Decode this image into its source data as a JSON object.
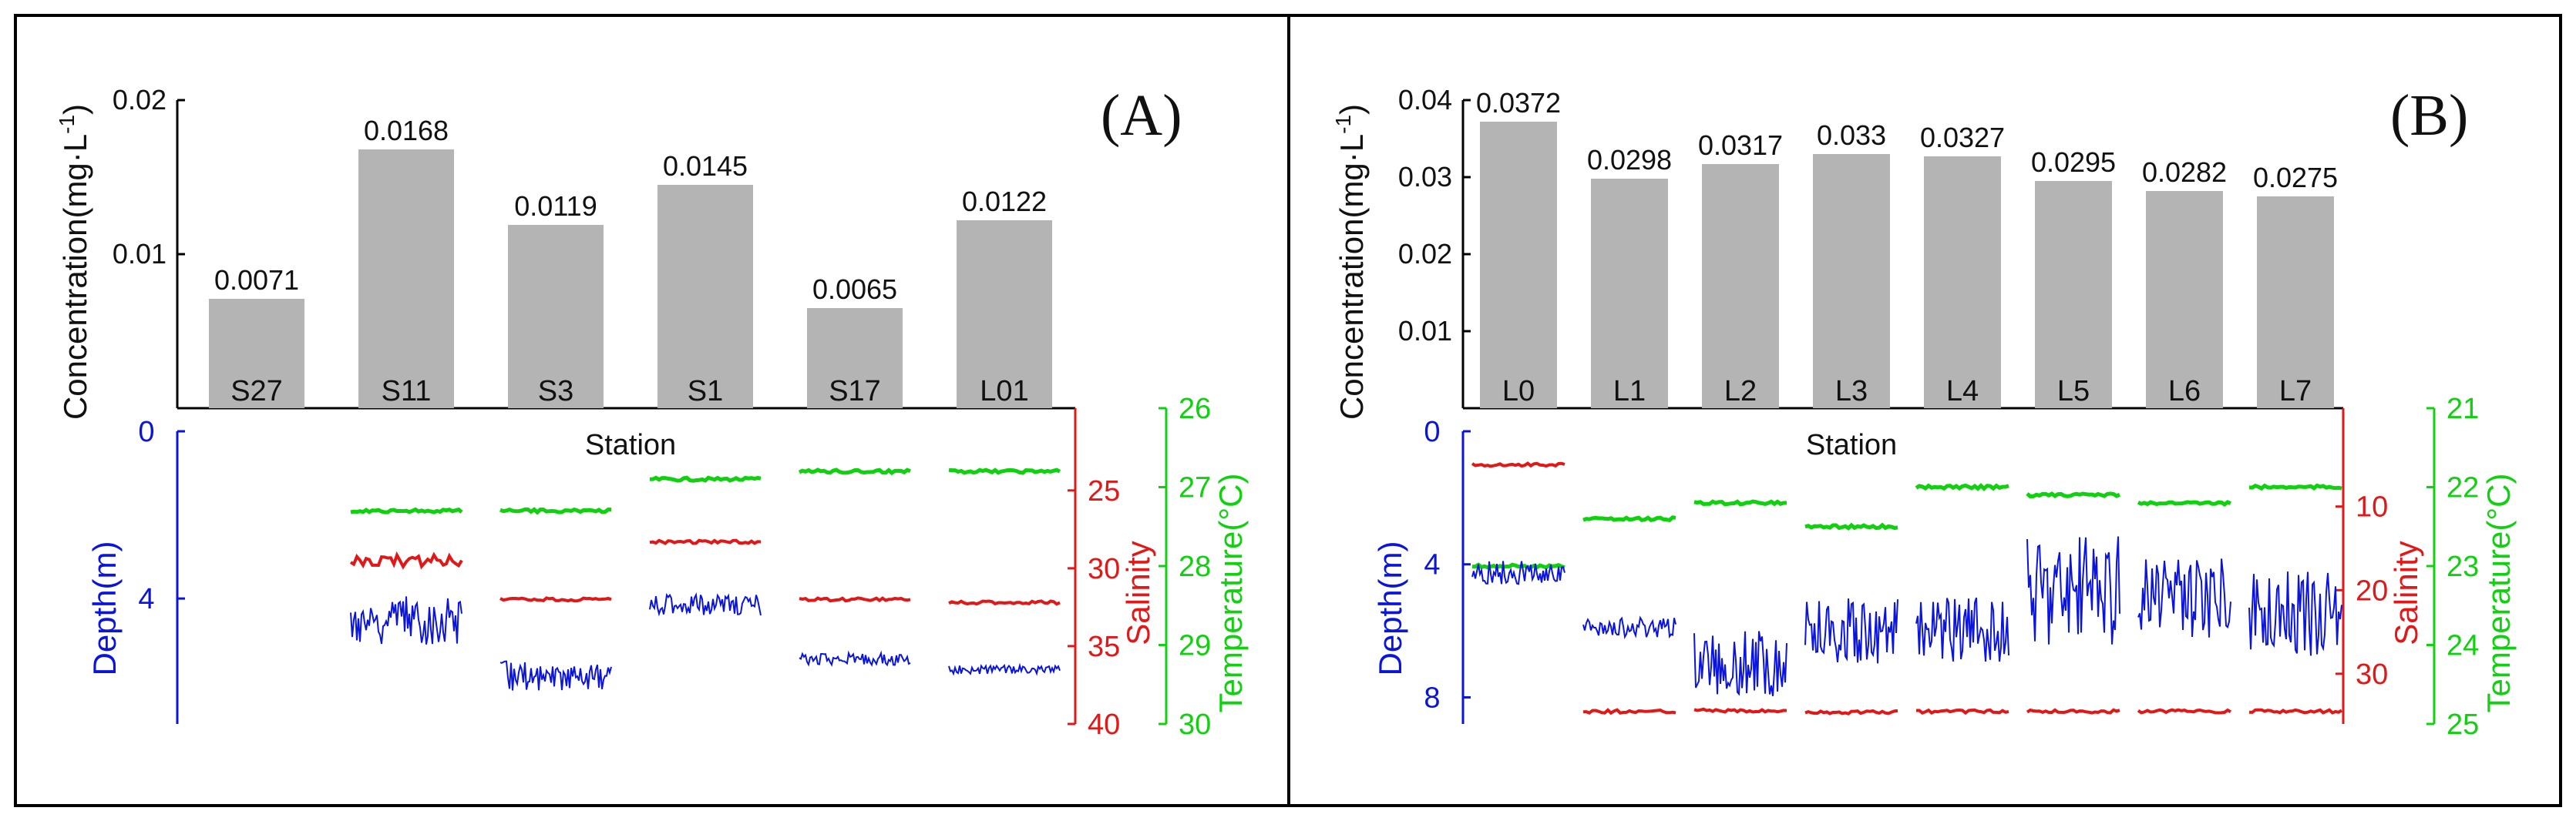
{
  "chart_data": [
    {
      "type": "bar",
      "panel": "(A)",
      "categories": [
        "S27",
        "S11",
        "S3",
        "S1",
        "S17",
        "L01"
      ],
      "values": [
        0.0071,
        0.0168,
        0.0119,
        0.0145,
        0.0065,
        0.0122
      ],
      "value_labels": [
        "0.0071",
        "0.0168",
        "0.0119",
        "0.0145",
        "0.0065",
        "0.0122"
      ],
      "xlabel": "Station",
      "ylabel": "Concentration(mg·L-1)",
      "ylim": [
        0,
        0.02
      ],
      "yticks": [
        "0.01",
        "0.02"
      ],
      "yticks_values": [
        0.01,
        0.02
      ],
      "profiles": {
        "depth_axis": {
          "label": "Depth(m)",
          "range": [
            0,
            7
          ],
          "ticks": [
            0,
            4
          ],
          "tick_labels": [
            "0",
            "4"
          ]
        },
        "salinity_axis": {
          "label": "Salinity",
          "range": [
            21.2,
            40
          ],
          "ticks": [
            25,
            30,
            35,
            40
          ],
          "tick_labels": [
            "25",
            "30",
            "35",
            "40"
          ]
        },
        "temperature_axis": {
          "label": "Temperature(°C)",
          "range": [
            26,
            30
          ],
          "ticks": [
            26,
            27,
            28,
            29,
            30
          ],
          "tick_labels": [
            "26",
            "27",
            "28",
            "29",
            "30"
          ]
        },
        "stations": [
          {
            "station": "S27"
          },
          {
            "station": "S11",
            "temperature": 27.3,
            "salinity": 29.5,
            "depth": [
              3.9,
              5.1
            ]
          },
          {
            "station": "S3",
            "temperature": 27.3,
            "salinity": 32.0,
            "depth": [
              5.5,
              6.2
            ]
          },
          {
            "station": "S1",
            "temperature": 26.9,
            "salinity": 28.3,
            "depth": [
              3.9,
              4.4
            ]
          },
          {
            "station": "S17",
            "temperature": 26.8,
            "salinity": 32.0,
            "depth": [
              5.3,
              5.6
            ]
          },
          {
            "station": "L01",
            "temperature": 26.8,
            "salinity": 32.2,
            "depth": [
              5.6,
              5.8
            ]
          }
        ]
      }
    },
    {
      "type": "bar",
      "panel": "(B)",
      "categories": [
        "L0",
        "L1",
        "L2",
        "L3",
        "L4",
        "L5",
        "L6",
        "L7"
      ],
      "values": [
        0.0372,
        0.0298,
        0.0317,
        0.033,
        0.0327,
        0.0295,
        0.0282,
        0.0275
      ],
      "value_labels": [
        "0.0372",
        "0.0298",
        "0.0317",
        "0.033",
        "0.0327",
        "0.0295",
        "0.0282",
        "0.0275"
      ],
      "xlabel": "Station",
      "ylabel": "Concentration(mg·L-1)",
      "ylim": [
        0,
        0.04
      ],
      "yticks": [
        "0.01",
        "0.02",
        "0.03",
        "0.04"
      ],
      "yticks_values": [
        0.01,
        0.02,
        0.03,
        0.04
      ],
      "profiles": {
        "depth_axis": {
          "label": "Depth(m)",
          "range": [
            0,
            8.8
          ],
          "ticks": [
            0,
            4,
            8
          ],
          "tick_labels": [
            "0",
            "4",
            "8"
          ]
        },
        "salinity_axis": {
          "label": "Salinity",
          "range": [
            1,
            36
          ],
          "ticks": [
            10,
            20,
            30
          ],
          "tick_labels": [
            "10",
            "20",
            "30"
          ]
        },
        "temperature_axis": {
          "label": "Temperature(°C)",
          "range": [
            21,
            25
          ],
          "ticks": [
            21,
            22,
            23,
            24,
            25
          ],
          "tick_labels": [
            "21",
            "22",
            "23",
            "24",
            "25"
          ]
        },
        "stations": [
          {
            "station": "L0",
            "temperature": 23.0,
            "salinity": 5.0,
            "depth": [
              3.9,
              4.6
            ]
          },
          {
            "station": "L1",
            "temperature": 22.4,
            "salinity": 34.5,
            "depth": [
              5.6,
              6.2
            ]
          },
          {
            "station": "L2",
            "temperature": 22.2,
            "salinity": 34.4,
            "depth": [
              6.0,
              8.0
            ]
          },
          {
            "station": "L3",
            "temperature": 22.5,
            "salinity": 34.6,
            "depth": [
              5.0,
              7.0
            ]
          },
          {
            "station": "L4",
            "temperature": 22.0,
            "salinity": 34.5,
            "depth": [
              5.0,
              7.0
            ]
          },
          {
            "station": "L5",
            "temperature": 22.1,
            "salinity": 34.5,
            "depth": [
              3.0,
              6.5
            ]
          },
          {
            "station": "L6",
            "temperature": 22.2,
            "salinity": 34.5,
            "depth": [
              3.8,
              6.2
            ]
          },
          {
            "station": "L7",
            "temperature": 22.0,
            "salinity": 34.5,
            "depth": [
              4.2,
              6.8
            ]
          }
        ]
      }
    }
  ],
  "colors": {
    "bar": "#b4b4b4",
    "depth": "#0a14dc",
    "salinity": "#e01818",
    "temperature": "#10d010",
    "text": "#111111",
    "frame": "#000000"
  }
}
